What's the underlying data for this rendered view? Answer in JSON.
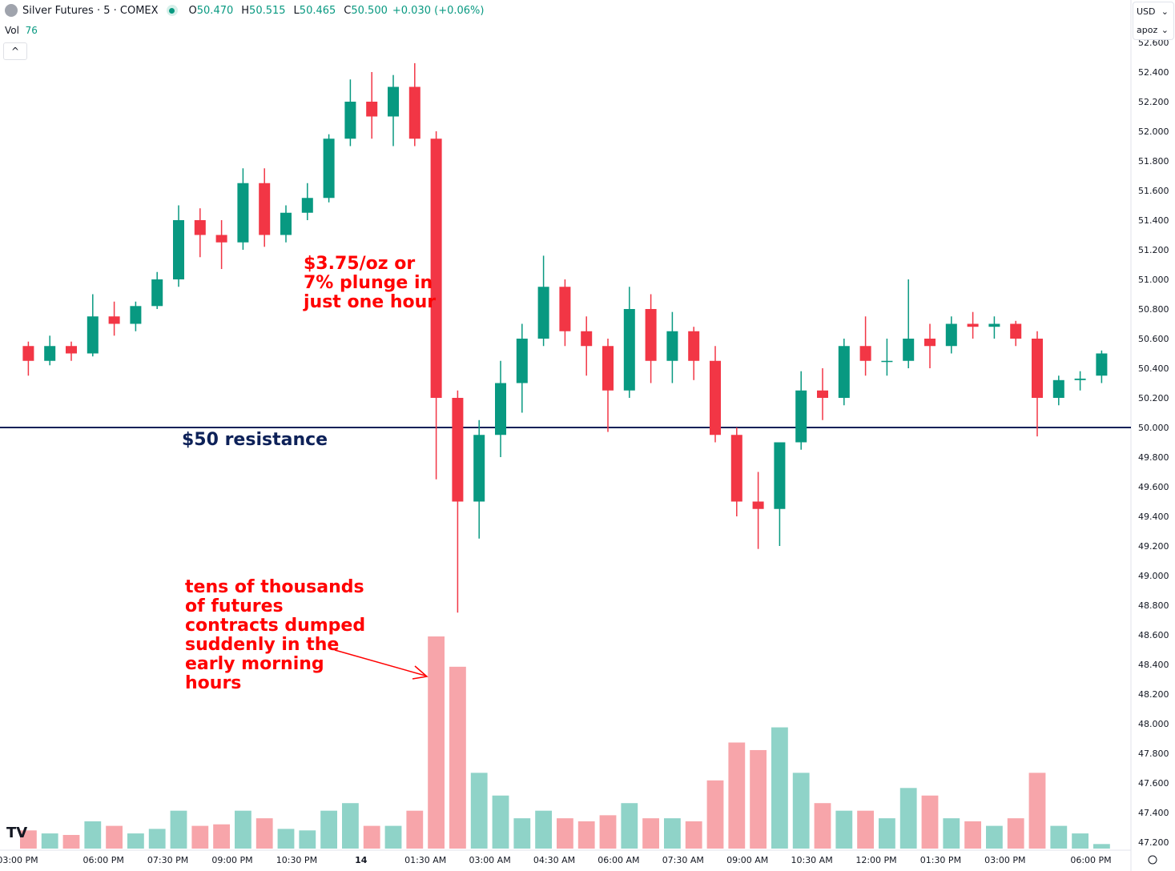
{
  "header": {
    "symbol": "Silver Futures · 5 · COMEX",
    "open_label": "O",
    "open": "50.470",
    "high_label": "H",
    "high": "50.515",
    "low_label": "L",
    "low": "50.465",
    "close_label": "C",
    "close": "50.500",
    "change": "+0.030 (+0.06%)",
    "vol_label": "Vol",
    "vol_value": "76",
    "collapse": "^"
  },
  "axis_controls": {
    "currency": "USD",
    "scale": "apoz"
  },
  "colors": {
    "up": "#089981",
    "down": "#f23645",
    "vol_up": "#8fd3c8",
    "vol_down": "#f7a5aa",
    "resistance": "#0d2158",
    "annotation": "#ff0000"
  },
  "annotations": {
    "plunge": "$3.75/oz or\n7% plunge in\njust one hour",
    "resistance": "$50 resistance",
    "volume_note": "tens of thousands\nof futures\ncontracts dumped\nsuddenly in the\nearly morning\nhours"
  },
  "chart_data": {
    "type": "candlestick",
    "note_interval": "5",
    "y_ticks": [
      "52.600",
      "52.400",
      "52.200",
      "52.000",
      "51.800",
      "51.600",
      "51.400",
      "51.200",
      "51.000",
      "50.800",
      "50.600",
      "50.400",
      "50.200",
      "50.000",
      "49.800",
      "49.600",
      "49.400",
      "49.200",
      "49.000",
      "48.800",
      "48.600",
      "48.400",
      "48.200",
      "48.000",
      "47.800",
      "47.600",
      "47.400",
      "47.200"
    ],
    "ylim": [
      47.1,
      52.65
    ],
    "x_ticks": [
      {
        "i": 0,
        "label": "03:00 PM"
      },
      {
        "i": 4,
        "label": "06:00 PM"
      },
      {
        "i": 7,
        "label": "07:30 PM"
      },
      {
        "i": 10,
        "label": "09:00 PM"
      },
      {
        "i": 13,
        "label": "10:30 PM"
      },
      {
        "i": 16,
        "label": "14"
      },
      {
        "i": 19,
        "label": "01:30 AM"
      },
      {
        "i": 22,
        "label": "03:00 AM"
      },
      {
        "i": 25,
        "label": "04:30 AM"
      },
      {
        "i": 28,
        "label": "06:00 AM"
      },
      {
        "i": 31,
        "label": "07:30 AM"
      },
      {
        "i": 34,
        "label": "09:00 AM"
      },
      {
        "i": 37,
        "label": "10:30 AM"
      },
      {
        "i": 40,
        "label": "12:00 PM"
      },
      {
        "i": 43,
        "label": "01:30 PM"
      },
      {
        "i": 46,
        "label": "03:00 PM"
      },
      {
        "i": 50,
        "label": "06:00 PM"
      }
    ],
    "resistance_level": 50.0,
    "bars": [
      [
        "15:00",
        50.55,
        50.58,
        50.35,
        50.45,
        1200
      ],
      [
        "15:30",
        50.45,
        50.62,
        50.42,
        50.55,
        1000
      ],
      [
        "16:00",
        50.55,
        50.58,
        50.45,
        50.5,
        900
      ],
      [
        "16:30",
        50.5,
        50.9,
        50.48,
        50.75,
        1800
      ],
      [
        "18:00",
        50.75,
        50.85,
        50.62,
        50.7,
        1500
      ],
      [
        "18:30",
        50.7,
        50.85,
        50.65,
        50.82,
        1000
      ],
      [
        "19:00",
        50.82,
        51.05,
        50.8,
        51.0,
        1300
      ],
      [
        "19:30",
        51.0,
        51.5,
        50.95,
        51.4,
        2500
      ],
      [
        "20:00",
        51.4,
        51.48,
        51.15,
        51.3,
        1500
      ],
      [
        "20:30",
        51.3,
        51.4,
        51.07,
        51.25,
        1600
      ],
      [
        "21:00",
        51.25,
        51.75,
        51.2,
        51.65,
        2500
      ],
      [
        "21:30",
        51.65,
        51.75,
        51.22,
        51.3,
        2000
      ],
      [
        "22:00",
        51.3,
        51.5,
        51.25,
        51.45,
        1300
      ],
      [
        "22:30",
        51.45,
        51.65,
        51.4,
        51.55,
        1200
      ],
      [
        "23:00",
        51.55,
        51.98,
        51.52,
        51.95,
        2500
      ],
      [
        "23:30",
        51.95,
        52.35,
        51.9,
        52.2,
        3000
      ],
      [
        "00:00",
        52.2,
        52.4,
        51.95,
        52.1,
        1500
      ],
      [
        "00:30",
        52.1,
        52.38,
        51.9,
        52.3,
        1500
      ],
      [
        "01:00",
        52.3,
        52.46,
        51.9,
        51.95,
        2500
      ],
      [
        "01:30",
        51.95,
        52.0,
        49.65,
        50.2,
        14000
      ],
      [
        "02:00",
        50.2,
        50.25,
        48.75,
        49.5,
        12000
      ],
      [
        "02:30",
        49.5,
        50.05,
        49.25,
        49.95,
        5000
      ],
      [
        "03:00",
        49.95,
        50.45,
        49.8,
        50.3,
        3500
      ],
      [
        "03:30",
        50.3,
        50.7,
        50.1,
        50.6,
        2000
      ],
      [
        "04:00",
        50.6,
        51.16,
        50.55,
        50.95,
        2500
      ],
      [
        "04:30",
        50.95,
        51.0,
        50.55,
        50.65,
        2000
      ],
      [
        "05:00",
        50.65,
        50.75,
        50.35,
        50.55,
        1800
      ],
      [
        "05:30",
        50.55,
        50.6,
        49.97,
        50.25,
        2200
      ],
      [
        "06:00",
        50.25,
        50.95,
        50.2,
        50.8,
        3000
      ],
      [
        "06:30",
        50.8,
        50.9,
        50.3,
        50.45,
        2000
      ],
      [
        "07:00",
        50.45,
        50.78,
        50.3,
        50.65,
        2000
      ],
      [
        "07:30",
        50.65,
        50.68,
        50.32,
        50.45,
        1800
      ],
      [
        "08:00",
        50.45,
        50.55,
        49.9,
        49.95,
        4500
      ],
      [
        "08:30",
        49.95,
        50.0,
        49.4,
        49.5,
        7000
      ],
      [
        "09:00",
        49.5,
        49.7,
        49.18,
        49.45,
        6500
      ],
      [
        "09:30",
        49.45,
        49.9,
        49.2,
        49.9,
        8000
      ],
      [
        "10:00",
        49.9,
        50.38,
        49.85,
        50.25,
        5000
      ],
      [
        "10:30",
        50.25,
        50.4,
        50.05,
        50.2,
        3000
      ],
      [
        "11:00",
        50.2,
        50.6,
        50.15,
        50.55,
        2500
      ],
      [
        "11:30",
        50.55,
        50.75,
        50.35,
        50.45,
        2500
      ],
      [
        "12:00",
        50.45,
        50.6,
        50.35,
        50.45,
        2000
      ],
      [
        "12:30",
        50.45,
        51.0,
        50.4,
        50.6,
        4000
      ],
      [
        "13:00",
        50.6,
        50.7,
        50.4,
        50.55,
        3500
      ],
      [
        "13:30",
        50.55,
        50.75,
        50.5,
        50.7,
        2000
      ],
      [
        "14:00",
        50.7,
        50.78,
        50.6,
        50.68,
        1800
      ],
      [
        "14:30",
        50.68,
        50.75,
        50.6,
        50.7,
        1500
      ],
      [
        "15:00",
        50.7,
        50.72,
        50.55,
        50.6,
        2000
      ],
      [
        "15:30",
        50.6,
        50.65,
        49.94,
        50.2,
        5000
      ],
      [
        "16:00",
        50.2,
        50.35,
        50.15,
        50.32,
        1500
      ],
      [
        "16:30",
        50.32,
        50.38,
        50.25,
        50.33,
        1000
      ],
      [
        "18:00",
        50.35,
        50.52,
        50.3,
        50.5,
        300
      ]
    ]
  }
}
